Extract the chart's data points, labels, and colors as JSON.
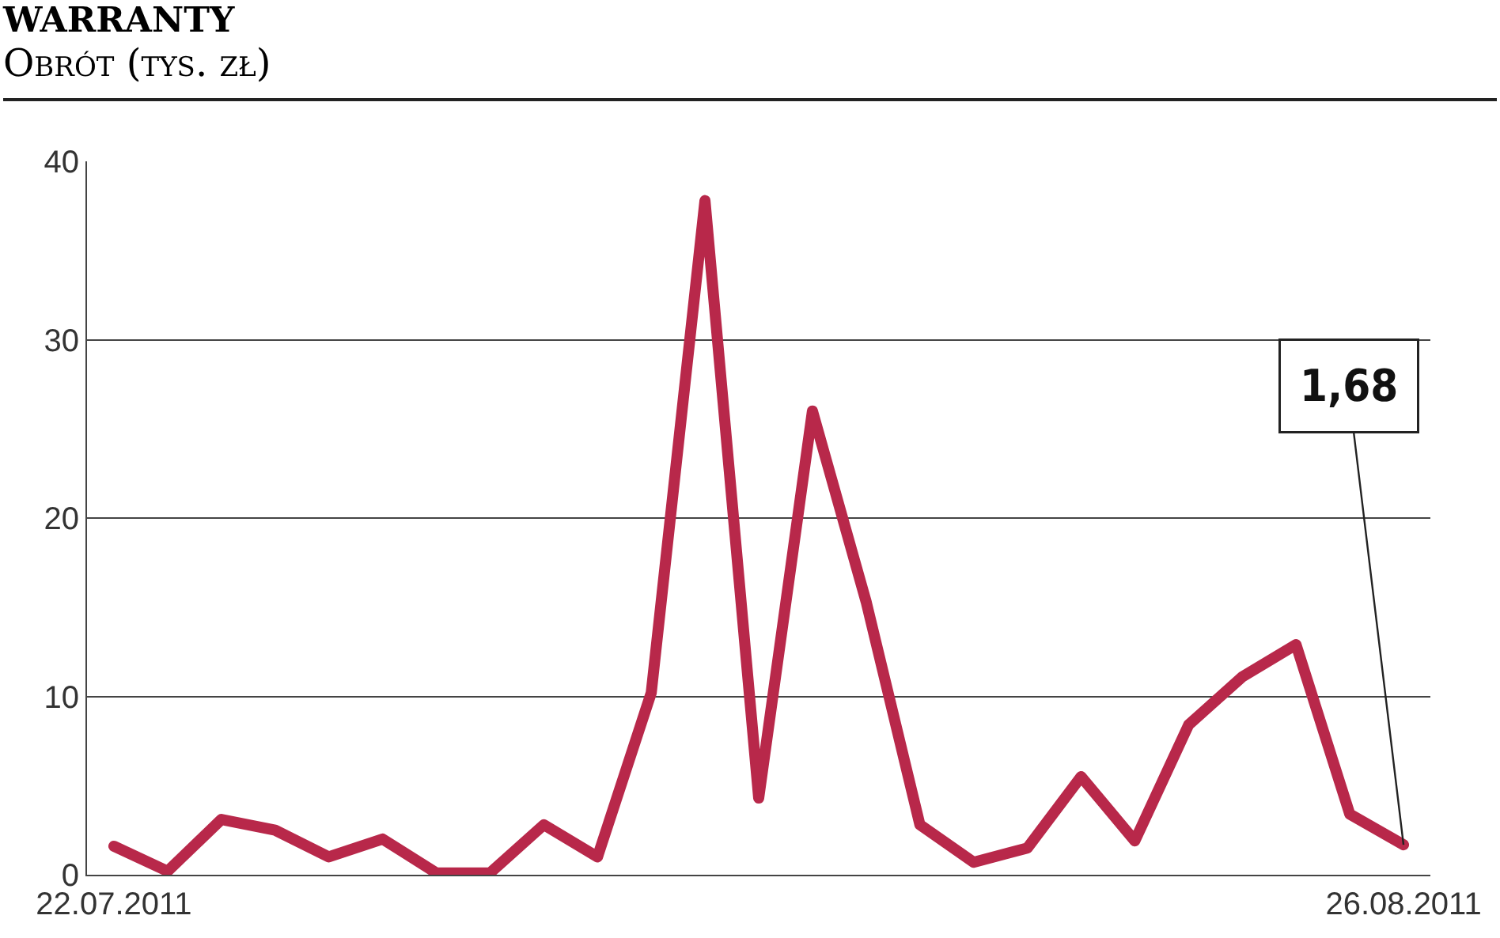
{
  "chart_data": {
    "type": "line",
    "title": "WARRANTY",
    "subtitle": "Obrót (tys. zł)",
    "categories": [
      "22.07.2011",
      null,
      null,
      null,
      null,
      null,
      null,
      null,
      null,
      null,
      null,
      null,
      null,
      null,
      null,
      null,
      null,
      null,
      null,
      null,
      null,
      null,
      null,
      null,
      "26.08.2011"
    ],
    "series": [
      {
        "color": "#b8284a",
        "values": [
          1.6,
          0.2,
          3.1,
          2.5,
          1.0,
          2.0,
          0.1,
          0.1,
          2.8,
          1.0,
          10.2,
          37.8,
          4.3,
          26.0,
          15.3,
          2.8,
          0.7,
          1.5,
          5.5,
          1.9,
          8.4,
          11.1,
          12.9,
          3.4,
          1.68
        ]
      }
    ],
    "ylim": [
      0,
      40
    ],
    "yticks": [
      0,
      10,
      20,
      30,
      40
    ],
    "grid": "y",
    "line_style": "solid",
    "annotations": [
      {
        "text": "1,68",
        "x": "26.08.2011",
        "y": 1.68
      }
    ]
  }
}
